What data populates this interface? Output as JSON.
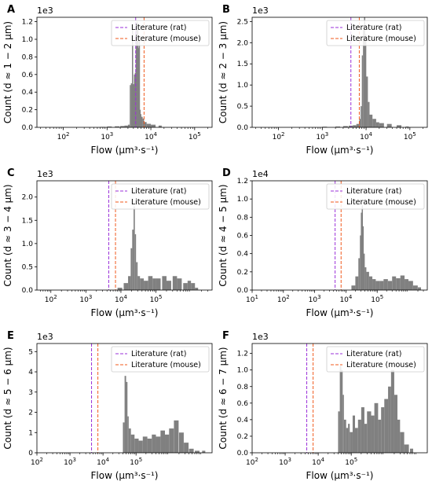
{
  "legend": {
    "rat_label": "Literature (rat)",
    "mouse_label": "Literature (mouse)",
    "rat_color": "#9b30d9",
    "mouse_color": "#f05a1e"
  },
  "bar_color": "#808080",
  "chart_data": [
    {
      "type": "bar",
      "panel": "A",
      "xlabel": "Flow (μm³·s⁻¹)",
      "ylabel": "Count (d ≈ 1 − 2 μm)",
      "xscale": "log",
      "xlim": [
        25,
        250000
      ],
      "ylim": [
        0,
        1250
      ],
      "yticks": [
        0,
        200,
        400,
        600,
        800,
        1000,
        1200
      ],
      "ytick_labels": [
        "0.0",
        "0.2",
        "0.4",
        "0.6",
        "0.8",
        "1.0",
        "1.2"
      ],
      "y_multiplier": "1e3",
      "xticks": [
        100,
        1000,
        10000,
        100000
      ],
      "literature_rat": 4500,
      "literature_mouse": 7000,
      "legend_position": "top-right",
      "histogram": {
        "x": [
          700,
          1000,
          1500,
          2000,
          2500,
          3000,
          3300,
          3500,
          3700,
          3900,
          4100,
          4300,
          4500,
          4700,
          4900,
          5100,
          5300,
          5500,
          5700,
          6000,
          6500,
          7000,
          8000,
          10000,
          15000
        ],
        "values": [
          5,
          10,
          12,
          15,
          20,
          30,
          480,
          500,
          1150,
          490,
          600,
          620,
          1130,
          1200,
          1180,
          900,
          1000,
          200,
          150,
          120,
          100,
          60,
          40,
          30,
          20
        ]
      }
    },
    {
      "type": "bar",
      "panel": "B",
      "xlabel": "Flow (μm³·s⁻¹)",
      "ylabel": "Count (d ≈ 2 − 3 μm)",
      "xscale": "log",
      "xlim": [
        25,
        250000
      ],
      "ylim": [
        0,
        2600
      ],
      "yticks": [
        0,
        500,
        1000,
        1500,
        2000,
        2500
      ],
      "ytick_labels": [
        "0.0",
        "0.5",
        "1.0",
        "1.5",
        "2.0",
        "2.5"
      ],
      "y_multiplier": "1e3",
      "xticks": [
        100,
        1000,
        10000,
        100000
      ],
      "literature_rat": 4500,
      "literature_mouse": 7000,
      "legend_position": "top-right",
      "histogram": {
        "x": [
          1000,
          2000,
          3000,
          4000,
          5000,
          6000,
          7000,
          7500,
          8000,
          8500,
          9000,
          9500,
          10000,
          11000,
          12000,
          14000,
          17000,
          20000,
          30000,
          50000,
          80000
        ],
        "values": [
          15,
          20,
          30,
          40,
          50,
          80,
          200,
          500,
          1700,
          2300,
          2600,
          2200,
          1200,
          600,
          300,
          200,
          120,
          100,
          80,
          50,
          20
        ]
      }
    },
    {
      "type": "bar",
      "panel": "C",
      "xlabel": "Flow (μm³·s⁻¹)",
      "ylabel": "Count (d ≈ 3 − 4 μm)",
      "xscale": "log",
      "xlim": [
        40,
        4000000
      ],
      "ylim": [
        0,
        2350
      ],
      "yticks": [
        0,
        500,
        1000,
        1500,
        2000
      ],
      "ytick_labels": [
        "0.0",
        "0.5",
        "1.0",
        "1.5",
        "2.0"
      ],
      "y_multiplier": "1e3",
      "xticks": [
        100,
        1000,
        10000,
        100000
      ],
      "literature_rat": 4500,
      "literature_mouse": 7000,
      "legend_position": "top-right",
      "histogram": {
        "x": [
          8000,
          12000,
          16000,
          19000,
          21000,
          23000,
          25000,
          27000,
          30000,
          35000,
          45000,
          60000,
          80000,
          100000,
          150000,
          200000,
          300000,
          400000,
          600000,
          800000,
          1000000,
          1300000
        ],
        "values": [
          50,
          150,
          300,
          900,
          1300,
          1800,
          1200,
          600,
          300,
          250,
          200,
          300,
          250,
          250,
          300,
          200,
          300,
          250,
          150,
          200,
          150,
          50
        ]
      }
    },
    {
      "type": "bar",
      "panel": "D",
      "xlabel": "Flow (μm³·s⁻¹)",
      "ylabel": "Count (d ≈ 4 − 5 μm)",
      "xscale": "log",
      "xlim": [
        10,
        4000000
      ],
      "ylim": [
        0,
        12000
      ],
      "yticks": [
        0,
        2000,
        4000,
        6000,
        8000,
        10000,
        12000
      ],
      "ytick_labels": [
        "0.0",
        "0.2",
        "0.4",
        "0.6",
        "0.8",
        "1.0",
        "1.2"
      ],
      "y_multiplier": "1e4",
      "xticks": [
        10,
        100,
        1000,
        10000,
        100000
      ],
      "literature_rat": 4500,
      "literature_mouse": 7000,
      "legend_position": "top-right",
      "histogram": {
        "x": [
          15000,
          20000,
          25000,
          28000,
          30000,
          32000,
          34000,
          36000,
          40000,
          45000,
          55000,
          70000,
          90000,
          120000,
          160000,
          220000,
          300000,
          400000,
          550000,
          750000,
          1000000,
          1400000,
          2000000
        ],
        "values": [
          500,
          1500,
          3500,
          6000,
          8500,
          9300,
          7000,
          4000,
          2500,
          2000,
          1500,
          1200,
          1000,
          1000,
          1200,
          1000,
          1500,
          1300,
          1600,
          1200,
          1000,
          500,
          300
        ]
      }
    },
    {
      "type": "bar",
      "panel": "E",
      "xlabel": "Flow (μm³·s⁻¹)",
      "ylabel": "Count (d ≈ 5 − 6 μm)",
      "xscale": "log",
      "xlim": [
        100,
        20000000
      ],
      "ylim": [
        0,
        5400
      ],
      "yticks": [
        0,
        1000,
        2000,
        3000,
        4000,
        5000
      ],
      "ytick_labels": [
        "0",
        "1",
        "2",
        "3",
        "4",
        "5"
      ],
      "y_multiplier": "1e3",
      "xticks": [
        100,
        1000,
        10000,
        100000
      ],
      "literature_rat": 4500,
      "literature_mouse": 7000,
      "legend_position": "top-right",
      "histogram": {
        "x": [
          40000,
          45000,
          50000,
          55000,
          60000,
          70000,
          90000,
          120000,
          160000,
          220000,
          300000,
          400000,
          550000,
          750000,
          1000000,
          1400000,
          2000000,
          2800000,
          4000000,
          6000000,
          10000000
        ],
        "values": [
          1500,
          3800,
          3500,
          1800,
          1200,
          900,
          700,
          600,
          800,
          700,
          900,
          800,
          1100,
          900,
          1200,
          1600,
          1000,
          500,
          200,
          100,
          100
        ]
      }
    },
    {
      "type": "bar",
      "panel": "F",
      "xlabel": "Flow (μm³·s⁻¹)",
      "ylabel": "Count (d ≈ 6 − 7 μm)",
      "xscale": "log",
      "xlim": [
        100,
        20000000
      ],
      "ylim": [
        0,
        1320
      ],
      "yticks": [
        0,
        200,
        400,
        600,
        800,
        1000,
        1200
      ],
      "ytick_labels": [
        "0.0",
        "0.2",
        "0.4",
        "0.6",
        "0.8",
        "1.0",
        "1.2"
      ],
      "y_multiplier": "1e3",
      "xticks": [
        100,
        1000,
        10000,
        100000
      ],
      "literature_rat": 4500,
      "literature_mouse": 7000,
      "legend_position": "top-right",
      "histogram": {
        "x": [
          40000,
          45000,
          50000,
          55000,
          60000,
          70000,
          80000,
          90000,
          110000,
          130000,
          160000,
          200000,
          250000,
          300000,
          400000,
          500000,
          650000,
          800000,
          1000000,
          1300000,
          1600000,
          2000000,
          2500000,
          3000000,
          4000000,
          6000000
        ],
        "values": [
          500,
          1050,
          1000,
          700,
          400,
          300,
          350,
          250,
          450,
          300,
          400,
          550,
          350,
          500,
          450,
          600,
          400,
          550,
          650,
          800,
          1000,
          700,
          400,
          250,
          100,
          50
        ]
      }
    }
  ]
}
